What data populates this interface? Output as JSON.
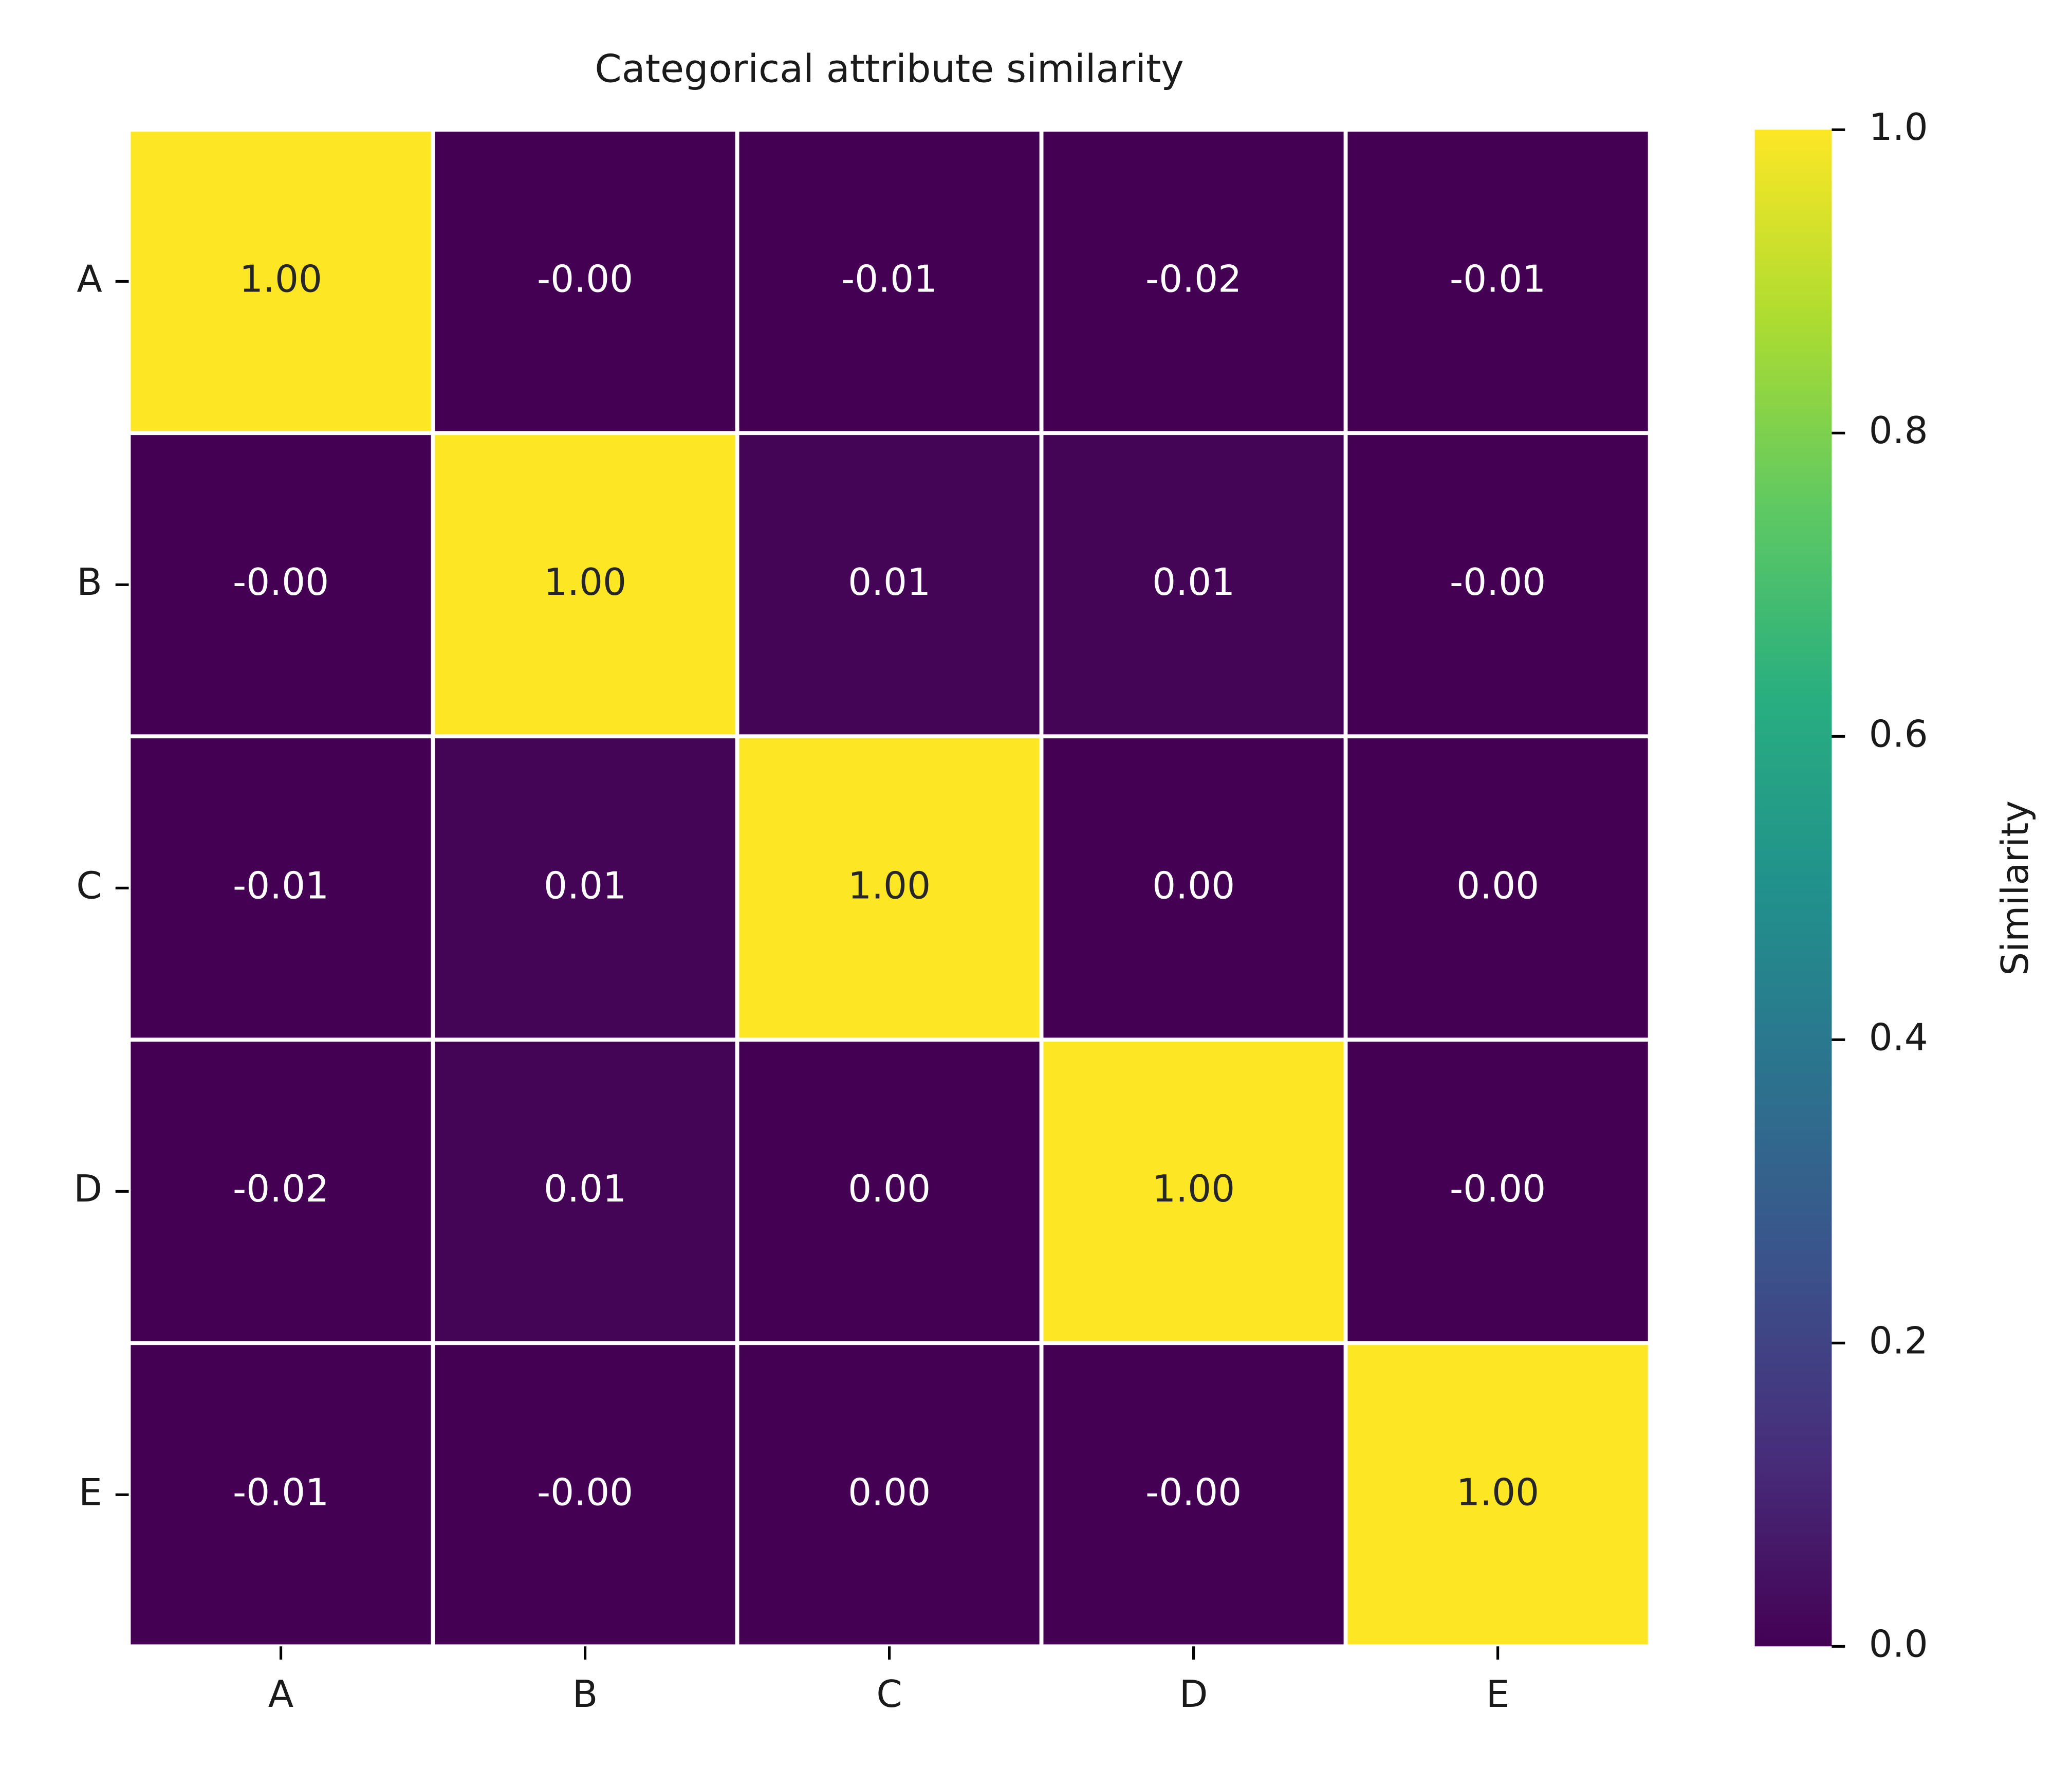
{
  "chart_data": {
    "type": "heatmap",
    "title": "Categorical attribute similarity",
    "x_categories": [
      "A",
      "B",
      "C",
      "D",
      "E"
    ],
    "y_categories": [
      "A",
      "B",
      "C",
      "D",
      "E"
    ],
    "values": [
      [
        1.0,
        -0.0,
        -0.01,
        -0.02,
        -0.01
      ],
      [
        -0.0,
        1.0,
        0.01,
        0.01,
        -0.0
      ],
      [
        -0.01,
        0.01,
        1.0,
        0.0,
        0.0
      ],
      [
        -0.02,
        0.01,
        0.0,
        1.0,
        -0.0
      ],
      [
        -0.01,
        -0.0,
        0.0,
        -0.0,
        1.0
      ]
    ],
    "value_labels": [
      [
        "1.00",
        "-0.00",
        "-0.01",
        "-0.02",
        "-0.01"
      ],
      [
        "-0.00",
        "1.00",
        "0.01",
        "0.01",
        "-0.00"
      ],
      [
        "-0.01",
        "0.01",
        "1.00",
        "0.00",
        "0.00"
      ],
      [
        "-0.02",
        "0.01",
        "0.00",
        "1.00",
        "-0.00"
      ],
      [
        "-0.01",
        "-0.00",
        "0.00",
        "-0.00",
        "1.00"
      ]
    ],
    "colormap": "viridis",
    "colorbar_label": "Similarity",
    "clim": [
      0,
      1
    ],
    "cticks": [
      {
        "value": 0,
        "label": "0.0"
      },
      0.2,
      0.4,
      0.6,
      0.8,
      {
        "value": 1,
        "label": "1.0"
      }
    ]
  }
}
